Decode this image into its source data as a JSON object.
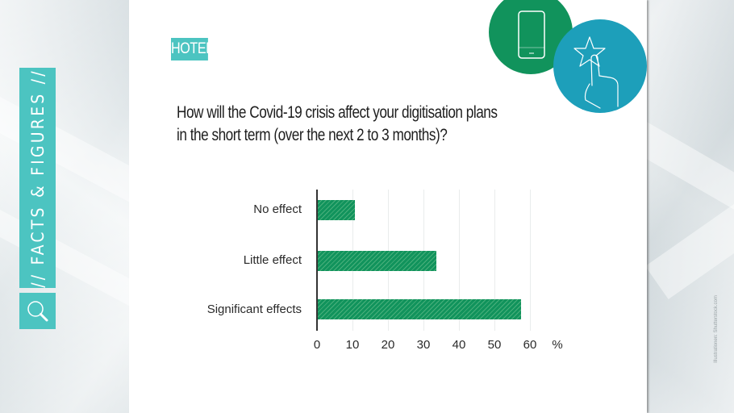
{
  "side_banner": {
    "label": "// FACTS & FIGURES //",
    "icon": "search-icon",
    "color": "#4cc4c1"
  },
  "badge": {
    "label": "HOTEL",
    "color": "#4cc4c1"
  },
  "icons": {
    "green_circle": {
      "icon": "smartphone-icon",
      "color": "#11935c"
    },
    "blue_circle": {
      "icon": "star-touch-icon",
      "color": "#1d9fba"
    }
  },
  "question": {
    "line1": "How will the Covid-19 crisis affect your digitisation plans",
    "line2": "in the short term (over the next 2 to 3 months)?"
  },
  "credit": "Illustrationen: Shutterstock.com",
  "chart_data": {
    "type": "bar",
    "orientation": "horizontal",
    "title": "How will the Covid-19 crisis affect your digitisation plans in the short term (over the next 2 to 3 months)?",
    "categories": [
      "No effect",
      "Little effect",
      "Significant effects"
    ],
    "values": [
      10.7,
      33.7,
      57.4
    ],
    "xlabel": "%",
    "ylabel": "",
    "xlim": [
      0,
      60
    ],
    "xticks": [
      "0",
      "10",
      "20",
      "30",
      "40",
      "50",
      "60"
    ],
    "unit_label": "%",
    "grid": true,
    "bar_color": "#11935c",
    "legend": null
  }
}
